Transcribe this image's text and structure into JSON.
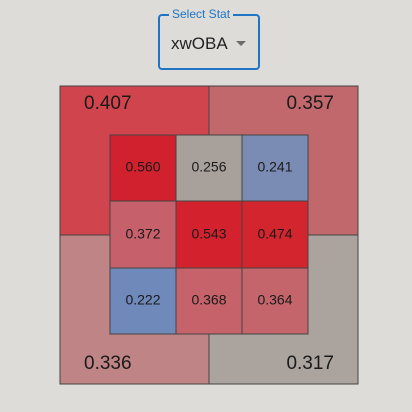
{
  "selector": {
    "label": "Select Stat",
    "value": "xwOBA",
    "icon": "chevron-down-icon"
  },
  "outer_zones": [
    {
      "id": "top-left",
      "value": "0.407",
      "color": "#d0454d"
    },
    {
      "id": "top-right",
      "value": "0.357",
      "color": "#c1686d"
    },
    {
      "id": "bottom-left",
      "value": "0.336",
      "color": "#bf8485"
    },
    {
      "id": "bottom-right",
      "value": "0.317",
      "color": "#aba49e"
    }
  ],
  "inner_zones": [
    [
      {
        "value": "0.560",
        "color": "#d2212e"
      },
      {
        "value": "0.256",
        "color": "#a8a09b"
      },
      {
        "value": "0.241",
        "color": "#7b8cb4"
      }
    ],
    [
      {
        "value": "0.372",
        "color": "#c6606a"
      },
      {
        "value": "0.543",
        "color": "#d3222d"
      },
      {
        "value": "0.474",
        "color": "#d3252e"
      }
    ],
    [
      {
        "value": "0.222",
        "color": "#6f89bb"
      },
      {
        "value": "0.368",
        "color": "#c5626a"
      },
      {
        "value": "0.364",
        "color": "#c3656b"
      }
    ]
  ]
}
